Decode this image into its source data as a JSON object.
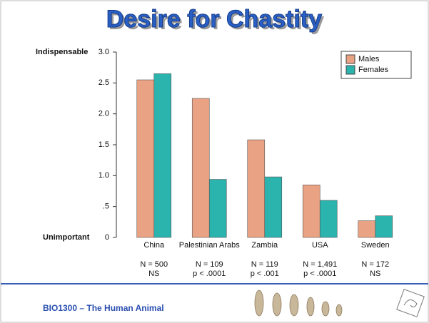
{
  "chart_data": {
    "type": "bar",
    "title": "Desire for Chastity",
    "y_top_label": "Indispensable",
    "y_bottom_label": "Unimportant",
    "categories": [
      "China",
      "Palestinian Arabs",
      "Zambia",
      "USA",
      "Sweden"
    ],
    "series": [
      {
        "name": "Males",
        "color": "#e9a283",
        "values": [
          2.55,
          2.25,
          1.58,
          0.85,
          0.27
        ]
      },
      {
        "name": "Females",
        "color": "#2bb3ad",
        "values": [
          2.65,
          0.94,
          0.98,
          0.6,
          0.35
        ]
      }
    ],
    "sample_sizes": [
      "N = 500",
      "N = 109",
      "N = 119",
      "N = 1,491",
      "N = 172"
    ],
    "significance": [
      "NS",
      "p < .0001",
      "p < .001",
      "p < .0001",
      "NS"
    ],
    "ylim": [
      0,
      3
    ],
    "yticks": [
      0,
      {
        "value": 0.5,
        "label": ".5"
      },
      {
        "value": 1,
        "label": "1.0"
      },
      1.5,
      {
        "value": 2,
        "label": "2.0"
      },
      2.5,
      {
        "value": 3,
        "label": "3.0"
      }
    ],
    "legend": "top-right"
  },
  "footer": {
    "course": "BIO1300 – The Human Animal"
  }
}
